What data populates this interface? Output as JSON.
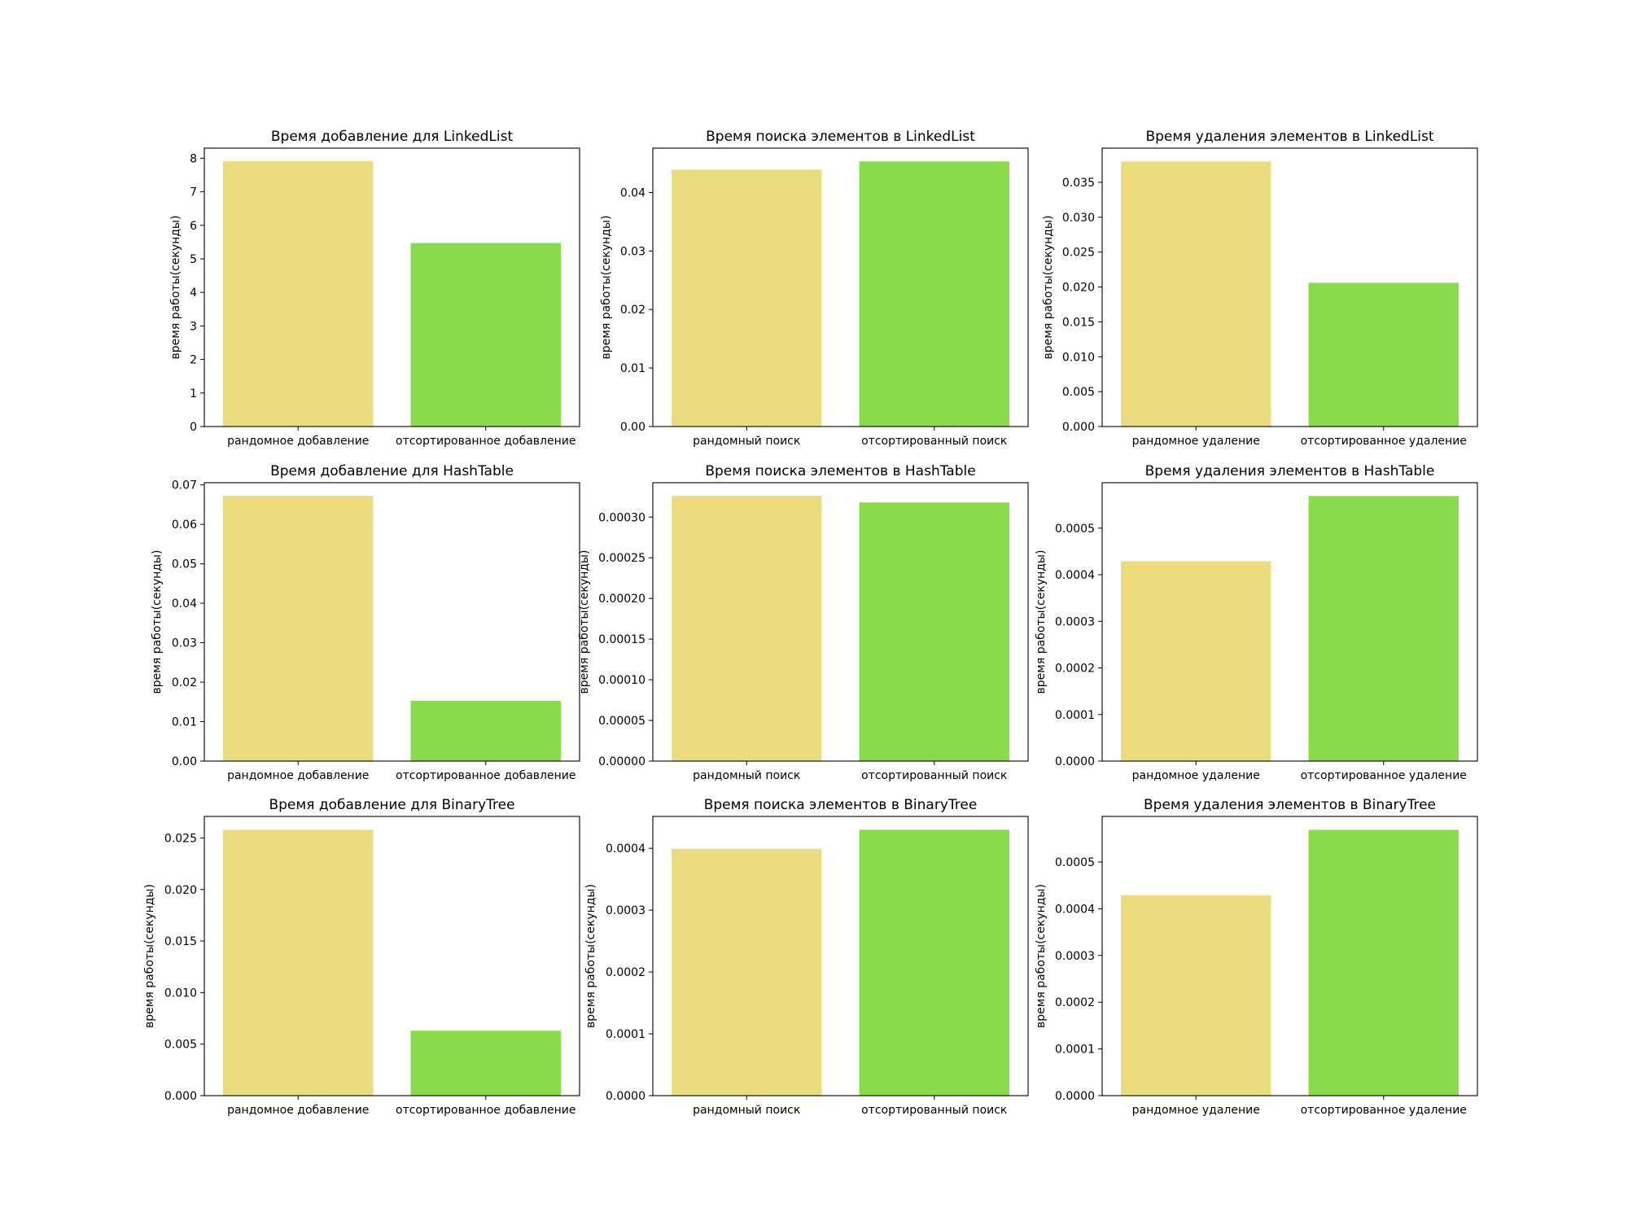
{
  "chart_data": [
    {
      "type": "bar",
      "title": "Время добавление для LinkedList",
      "ylabel": "время работы(секунды)",
      "xlabel": "",
      "categories": [
        "рандомное добавление",
        "отсортированное добавление"
      ],
      "values": [
        7.91,
        5.47
      ],
      "ylim": [
        0,
        8.3
      ],
      "yticks": [
        "0",
        "1",
        "2",
        "3",
        "4",
        "5",
        "6",
        "7",
        "8"
      ],
      "ytick_values": [
        0,
        1,
        2,
        3,
        4,
        5,
        6,
        7,
        8
      ],
      "colors": [
        "#ECDC80",
        "#89DB4C"
      ]
    },
    {
      "type": "bar",
      "title": "Время поиска элементов в LinkedList",
      "ylabel": "время работы(секунды)",
      "xlabel": "",
      "categories": [
        "рандомный поиск",
        "отсортированный поиск"
      ],
      "values": [
        0.0439,
        0.0453
      ],
      "ylim": [
        0,
        0.04757
      ],
      "yticks": [
        "0.00",
        "0.01",
        "0.02",
        "0.03",
        "0.04"
      ],
      "ytick_values": [
        0,
        0.01,
        0.02,
        0.03,
        0.04
      ],
      "colors": [
        "#ECDC80",
        "#89DB4C"
      ]
    },
    {
      "type": "bar",
      "title": "Время удаления элементов в LinkedList",
      "ylabel": "время работы(секунды)",
      "xlabel": "",
      "categories": [
        "рандомное удаление",
        "отсортированное удаление"
      ],
      "values": [
        0.038,
        0.0206
      ],
      "ylim": [
        0,
        0.0399
      ],
      "yticks": [
        "0.000",
        "0.005",
        "0.010",
        "0.015",
        "0.020",
        "0.025",
        "0.030",
        "0.035"
      ],
      "ytick_values": [
        0,
        0.005,
        0.01,
        0.015,
        0.02,
        0.025,
        0.03,
        0.035
      ],
      "colors": [
        "#ECDC80",
        "#89DB4C"
      ]
    },
    {
      "type": "bar",
      "title": "Время добавление для HashTable",
      "ylabel": "время работы(секунды)",
      "xlabel": "",
      "categories": [
        "рандомное добавление",
        "отсортированное добавление"
      ],
      "values": [
        0.0672,
        0.0153
      ],
      "ylim": [
        0,
        0.07056
      ],
      "yticks": [
        "0.00",
        "0.01",
        "0.02",
        "0.03",
        "0.04",
        "0.05",
        "0.06",
        "0.07"
      ],
      "ytick_values": [
        0,
        0.01,
        0.02,
        0.03,
        0.04,
        0.05,
        0.06,
        0.07
      ],
      "colors": [
        "#ECDC80",
        "#89DB4C"
      ]
    },
    {
      "type": "bar",
      "title": "Время поиска элементов в HashTable",
      "ylabel": "время работы(секунды)",
      "xlabel": "",
      "categories": [
        "рандомный поиск",
        "отсортированный поиск"
      ],
      "values": [
        0.000326,
        0.000318
      ],
      "ylim": [
        0,
        0.0003423
      ],
      "yticks": [
        "0.00000",
        "0.00005",
        "0.00010",
        "0.00015",
        "0.00020",
        "0.00025",
        "0.00030"
      ],
      "ytick_values": [
        0,
        5e-05,
        0.0001,
        0.00015,
        0.0002,
        0.00025,
        0.0003
      ],
      "colors": [
        "#ECDC80",
        "#89DB4C"
      ]
    },
    {
      "type": "bar",
      "title": "Время удаления элементов в HashTable",
      "ylabel": "время работы(секунды)",
      "xlabel": "",
      "categories": [
        "рандомное удаление",
        "отсортированное удаление"
      ],
      "values": [
        0.000429,
        0.000569
      ],
      "ylim": [
        0,
        0.0005975
      ],
      "yticks": [
        "0.0000",
        "0.0001",
        "0.0002",
        "0.0003",
        "0.0004",
        "0.0005"
      ],
      "ytick_values": [
        0,
        0.0001,
        0.0002,
        0.0003,
        0.0004,
        0.0005
      ],
      "colors": [
        "#ECDC80",
        "#89DB4C"
      ]
    },
    {
      "type": "bar",
      "title": "Время добавление для BinaryTree",
      "ylabel": "время работы(секунды)",
      "xlabel": "",
      "categories": [
        "рандомное добавление",
        "отсортированное добавление"
      ],
      "values": [
        0.0258,
        0.0063
      ],
      "ylim": [
        0,
        0.02709
      ],
      "yticks": [
        "0.000",
        "0.005",
        "0.010",
        "0.015",
        "0.020",
        "0.025"
      ],
      "ytick_values": [
        0,
        0.005,
        0.01,
        0.015,
        0.02,
        0.025
      ],
      "colors": [
        "#ECDC80",
        "#89DB4C"
      ]
    },
    {
      "type": "bar",
      "title": "Время поиска элементов в BinaryTree",
      "ylabel": "время работы(секунды)",
      "xlabel": "",
      "categories": [
        "рандомный поиск",
        "отсортированный поиск"
      ],
      "values": [
        0.000399,
        0.00043
      ],
      "ylim": [
        0,
        0.0004515
      ],
      "yticks": [
        "0.0000",
        "0.0001",
        "0.0002",
        "0.0003",
        "0.0004"
      ],
      "ytick_values": [
        0,
        0.0001,
        0.0002,
        0.0003,
        0.0004
      ],
      "colors": [
        "#ECDC80",
        "#89DB4C"
      ]
    },
    {
      "type": "bar",
      "title": "Время удаления элементов в BinaryTree",
      "ylabel": "время работы(секунды)",
      "xlabel": "",
      "categories": [
        "рандомное удаление",
        "отсортированное удаление"
      ],
      "values": [
        0.000429,
        0.000569
      ],
      "ylim": [
        0,
        0.0005975
      ],
      "yticks": [
        "0.0000",
        "0.0001",
        "0.0002",
        "0.0003",
        "0.0004",
        "0.0005"
      ],
      "ytick_values": [
        0,
        0.0001,
        0.0002,
        0.0003,
        0.0004,
        0.0005
      ],
      "colors": [
        "#ECDC80",
        "#89DB4C"
      ]
    }
  ]
}
